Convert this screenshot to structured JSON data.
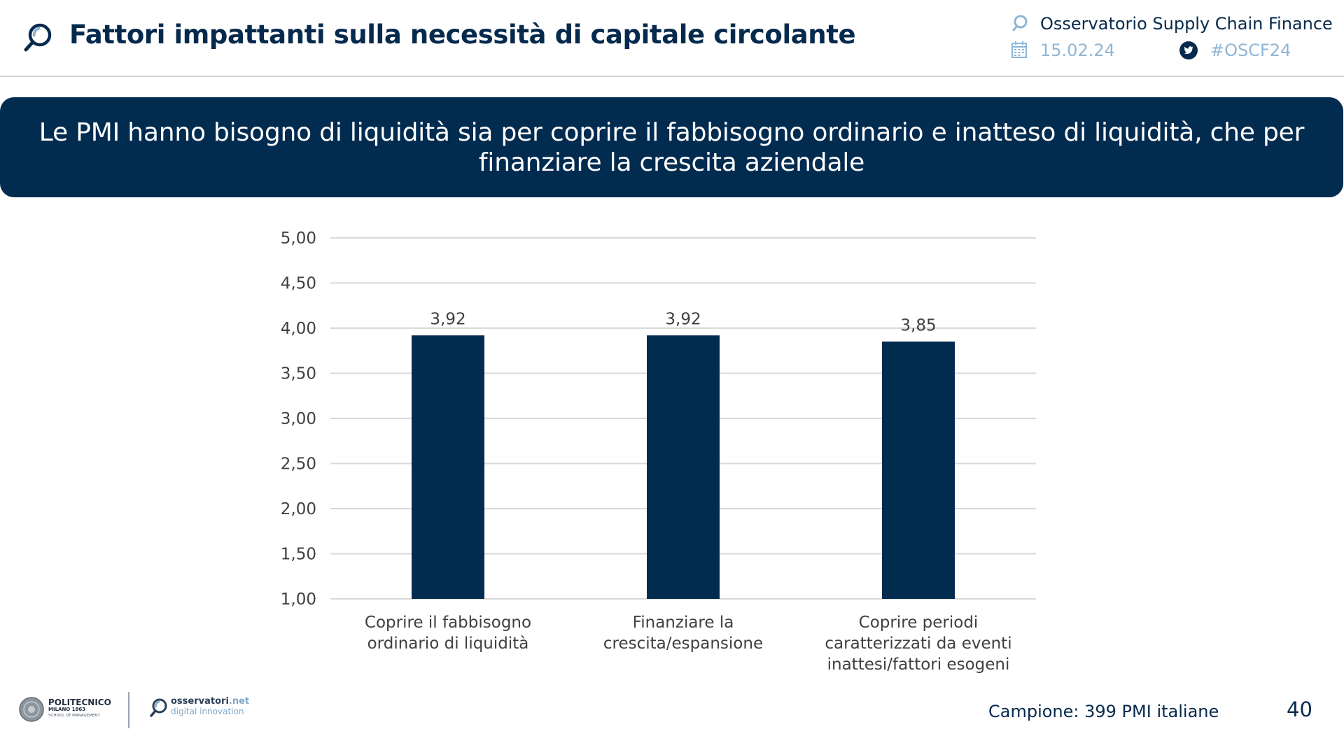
{
  "header": {
    "title": "Fattori impattanti sulla necessità di capitale circolante",
    "observatory": "Osservatorio Supply Chain Finance",
    "date": "15.02.24",
    "hashtag": "#OSCF24"
  },
  "banner": {
    "text": "Le PMI hanno bisogno di liquidità sia per coprire il fabbisogno ordinario e inatteso di liquidità, che per finanziare la crescita aziendale"
  },
  "chart_data": {
    "type": "bar",
    "categories": [
      [
        "Coprire il fabbisogno",
        "ordinario di liquidità"
      ],
      [
        "Finanziare la",
        "crescita/espansione"
      ],
      [
        "Coprire periodi",
        "caratterizzati da eventi",
        "inattesi/fattori esogeni"
      ]
    ],
    "values": [
      3.92,
      3.92,
      3.85
    ],
    "data_labels": [
      "3,92",
      "3,92",
      "3,85"
    ],
    "ylim": [
      1.0,
      5.0
    ],
    "yticks": [
      1.0,
      1.5,
      2.0,
      2.5,
      3.0,
      3.5,
      4.0,
      4.5,
      5.0
    ],
    "ytick_labels": [
      "1,00",
      "1,50",
      "2,00",
      "2,50",
      "3,00",
      "3,50",
      "4,00",
      "4,50",
      "5,00"
    ],
    "title": "",
    "xlabel": "",
    "ylabel": "",
    "grid": true,
    "bar_color": "#022b50"
  },
  "footer": {
    "sample": "Campione: 399 PMI italiane",
    "page_number": "40",
    "polimi_line1": "POLITECNICO",
    "polimi_line2": "MILANO 1863",
    "polimi_line3": "SCHOOL OF MANAGEMENT",
    "osservatori_name": "osservatori",
    "osservatori_suffix": ".net",
    "osservatori_tagline": "digital innovation"
  },
  "icons": {
    "header_logo": "magnifier-logo-icon",
    "observatory": "observatory-logo-icon",
    "date": "calendar-icon",
    "hashtag": "twitter-icon"
  },
  "colors": {
    "navy": "#022b50",
    "title": "#062a4d",
    "muted_blue": "#8fb5d6"
  }
}
